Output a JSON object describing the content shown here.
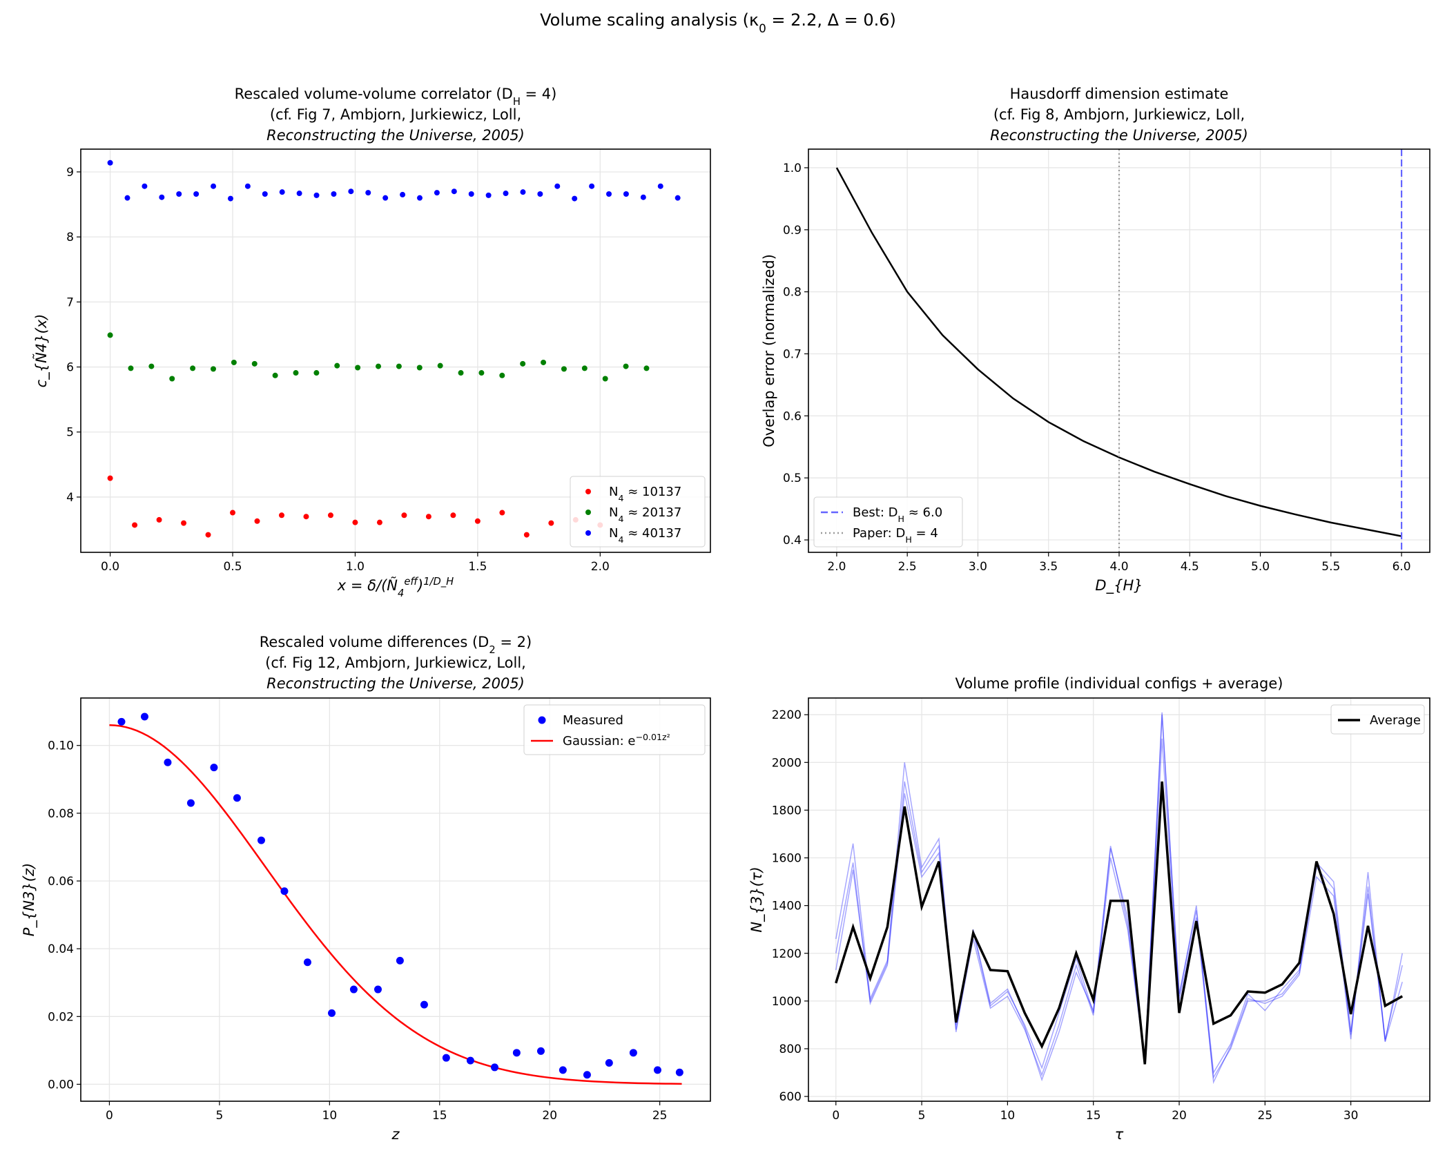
{
  "figure_title": "Volume scaling analysis (κ_{0} = 2.2, Δ = 0.6)",
  "chart_data": [
    {
      "type": "scatter",
      "title": [
        "Rescaled volume-volume correlator (D_{H} = 4)",
        "(cf. Fig 7, Ambjorn, Jurkiewicz, Loll,",
        "Reconstructing the Universe, 2005)"
      ],
      "xlabel": "x = δ/(Ñ_{4}^{eff})^{1/D_H}",
      "ylabel": "c_{Ñ4}(x)",
      "xlim": [
        -0.12,
        2.45
      ],
      "ylim": [
        3.15,
        9.35
      ],
      "xticks": [
        "0.0",
        "0.5",
        "1.0",
        "1.5",
        "2.0"
      ],
      "yticks": [
        "4",
        "5",
        "6",
        "7",
        "8",
        "9"
      ],
      "grid": true,
      "legend": "bottom-right",
      "series": [
        {
          "name": "N_{4} ≈ 10137",
          "color": "#ff0000",
          "x_step": 0.1,
          "y": [
            4.29,
            3.57,
            3.65,
            3.6,
            3.42,
            3.76,
            3.63,
            3.72,
            3.7,
            3.72,
            3.61,
            3.61,
            3.72,
            3.7,
            3.72,
            3.63,
            3.76,
            3.42,
            3.6,
            3.65,
            3.57
          ]
        },
        {
          "name": "N_{4} ≈ 20137",
          "color": "#008000",
          "x_step": 0.0842,
          "y": [
            6.49,
            5.98,
            6.01,
            5.82,
            5.98,
            5.97,
            6.07,
            6.05,
            5.87,
            5.91,
            5.91,
            6.02,
            5.99,
            6.01,
            6.01,
            5.99,
            6.02,
            5.91,
            5.91,
            5.87,
            6.05,
            6.07,
            5.97,
            5.98,
            5.82,
            6.01,
            5.98
          ]
        },
        {
          "name": "N_{4} ≈ 40137",
          "color": "#0000ff",
          "x_step": 0.0702,
          "y": [
            9.14,
            8.6,
            8.78,
            8.61,
            8.66,
            8.66,
            8.78,
            8.59,
            8.78,
            8.66,
            8.69,
            8.67,
            8.64,
            8.66,
            8.7,
            8.68,
            8.6,
            8.65,
            8.6,
            8.68,
            8.7,
            8.66,
            8.64,
            8.67,
            8.69,
            8.66,
            8.78,
            8.59,
            8.78,
            8.66,
            8.66,
            8.61,
            8.78,
            8.6
          ]
        }
      ]
    },
    {
      "type": "line",
      "title": [
        "Hausdorff dimension estimate",
        "(cf. Fig 8, Ambjorn, Jurkiewicz, Loll,",
        "Reconstructing the Universe, 2005)"
      ],
      "xlabel": "D_{H}",
      "ylabel": "Overlap error (normalized)",
      "xlim": [
        1.8,
        6.2
      ],
      "ylim": [
        0.38,
        1.03
      ],
      "xticks": [
        "2.0",
        "2.5",
        "3.0",
        "3.5",
        "4.0",
        "4.5",
        "5.0",
        "5.5",
        "6.0"
      ],
      "yticks": [
        "0.4",
        "0.5",
        "0.6",
        "0.7",
        "0.8",
        "0.9",
        "1.0"
      ],
      "grid": true,
      "legend": "bottom-left",
      "x": [
        2.0,
        2.25,
        2.5,
        2.75,
        3.0,
        3.25,
        3.5,
        3.75,
        4.0,
        4.25,
        4.5,
        4.75,
        5.0,
        5.25,
        5.5,
        5.75,
        6.0
      ],
      "y": [
        1.0,
        0.895,
        0.8,
        0.73,
        0.675,
        0.628,
        0.59,
        0.559,
        0.533,
        0.51,
        0.49,
        0.471,
        0.455,
        0.441,
        0.428,
        0.417,
        0.406
      ],
      "color": "#000000",
      "vlines": [
        {
          "name": "Best: D_{H} ≈ 6.0",
          "x": 6.0,
          "color": "#6464ff",
          "style": "dashed"
        },
        {
          "name": "Paper: D_{H} = 4",
          "x": 4.0,
          "color": "#999999",
          "style": "dotted"
        }
      ]
    },
    {
      "type": "scatter",
      "title": [
        "Rescaled volume differences (D_{2} = 2)",
        "(cf. Fig 12, Ambjorn, Jurkiewicz, Loll,",
        "Reconstructing the Universe, 2005)"
      ],
      "xlabel": "z",
      "ylabel": "P_{N3}(z)",
      "xlim": [
        -1.3,
        27.3
      ],
      "ylim": [
        -0.005,
        0.114
      ],
      "xticks": [
        "0",
        "5",
        "10",
        "15",
        "20",
        "25"
      ],
      "yticks": [
        "0.00",
        "0.02",
        "0.04",
        "0.06",
        "0.08",
        "0.10"
      ],
      "grid": true,
      "legend": "top-right",
      "series": [
        {
          "name": "Measured",
          "color": "#0000ff",
          "x": [
            0.55,
            1.6,
            2.65,
            3.7,
            4.75,
            5.8,
            6.9,
            7.95,
            9.0,
            10.1,
            11.1,
            12.2,
            13.2,
            14.3,
            15.3,
            16.4,
            17.5,
            18.5,
            19.6,
            20.6,
            21.7,
            22.7,
            23.8,
            24.9,
            25.9
          ],
          "y": [
            0.107,
            0.1085,
            0.095,
            0.083,
            0.0935,
            0.0845,
            0.072,
            0.057,
            0.036,
            0.021,
            0.028,
            0.028,
            0.0365,
            0.0235,
            0.0078,
            0.007,
            0.005,
            0.0093,
            0.0098,
            0.0042,
            0.0028,
            0.0063,
            0.0093,
            0.0042,
            0.0035
          ]
        },
        {
          "name": "Gaussian: e^{−0.01z²}",
          "color": "#ff0000",
          "type": "line",
          "amplitude": 0.106,
          "coefficient": 0.01,
          "x_range": [
            0,
            26
          ]
        }
      ]
    },
    {
      "type": "line",
      "title": [
        "Volume profile (individual configs + average)"
      ],
      "xlabel": "τ",
      "ylabel": "N_{3}(τ)",
      "xlim": [
        -1.6,
        34.6
      ],
      "ylim": [
        580,
        2270
      ],
      "xticks": [
        "0",
        "5",
        "10",
        "15",
        "20",
        "25",
        "30"
      ],
      "yticks": [
        "600",
        "800",
        "1000",
        "1200",
        "1400",
        "1600",
        "1800",
        "2000",
        "2200"
      ],
      "grid": true,
      "legend": "top-right",
      "configs_color": "#0000ff",
      "configs": [
        [
          1130,
          1550,
          1000,
          1160,
          1920,
          1540,
          1650,
          900,
          1290,
          980,
          1040,
          900,
          720,
          950,
          1180,
          950,
          1640,
          1350,
          740,
          2200,
          1030,
          1380,
          700,
          820,
          1030,
          960,
          1050,
          1130,
          1580,
          1500,
          870,
          1480,
          830,
          1200
        ],
        [
          1200,
          1580,
          990,
          1150,
          1870,
          1520,
          1620,
          880,
          1260,
          970,
          1020,
          880,
          690,
          900,
          1150,
          940,
          1600,
          1300,
          750,
          2100,
          1000,
          1350,
          680,
          800,
          1000,
          1000,
          1030,
          1120,
          1560,
          1470,
          860,
          1450,
          840,
          1150
        ],
        [
          1260,
          1660,
          1010,
          1170,
          2000,
          1560,
          1680,
          870,
          1300,
          990,
          1050,
          890,
          670,
          870,
          1120,
          960,
          1650,
          1320,
          740,
          2210,
          1020,
          1400,
          660,
          810,
          1010,
          990,
          1020,
          1110,
          1520,
          1440,
          840,
          1540,
          830,
          1080
        ]
      ],
      "average": {
        "name": "Average",
        "color": "#000000",
        "y": [
          1075,
          1310,
          1095,
          1310,
          1815,
          1395,
          1585,
          910,
          1285,
          1130,
          1125,
          950,
          810,
          970,
          1200,
          1005,
          1420,
          1420,
          735,
          1920,
          950,
          1335,
          905,
          940,
          1040,
          1035,
          1070,
          1160,
          1585,
          1365,
          945,
          1315,
          980,
          1020
        ]
      }
    }
  ]
}
